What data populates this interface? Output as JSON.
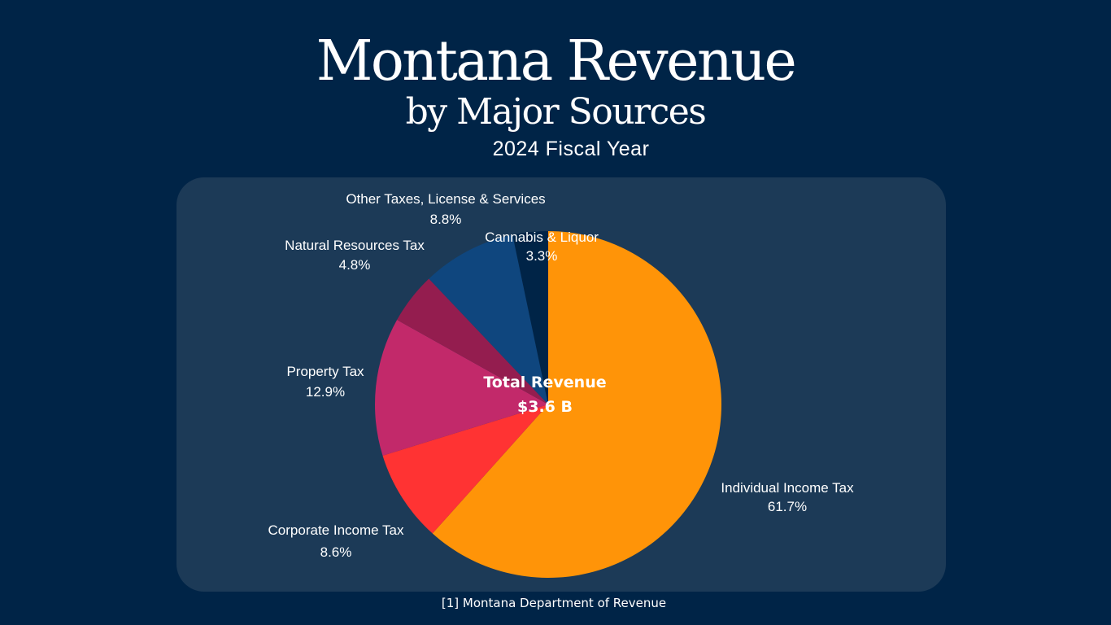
{
  "header": {
    "title": "Montana Revenue",
    "subtitle": "by Major Sources",
    "fiscal_year": "2024 Fiscal Year"
  },
  "chart_data": {
    "type": "pie",
    "title": "Montana Revenue by Major Sources",
    "subtitle": "2024 Fiscal Year",
    "center_title": "Total Revenue",
    "center_value": "$3.6 B",
    "start_angle_deg": 0,
    "direction": "clockwise",
    "slices": [
      {
        "label": "Individual Income Tax",
        "value": 61.7,
        "display": "61.7%",
        "color": "#ff9408"
      },
      {
        "label": "Corporate Income Tax",
        "value": 8.6,
        "display": "8.6%",
        "color": "#ff3333"
      },
      {
        "label": "Property Tax",
        "value": 12.9,
        "display": "12.9%",
        "color": "#c2296a"
      },
      {
        "label": "Natural Resources Tax",
        "value": 4.8,
        "display": "4.8%",
        "color": "#941d4f"
      },
      {
        "label": "Other Taxes, License & Services",
        "value": 8.8,
        "display": "8.8%",
        "color": "#0f467e"
      },
      {
        "label": "Cannabis & Liquor",
        "value": 3.3,
        "display": "3.3%",
        "color": "#002447"
      }
    ]
  },
  "footer": {
    "source": "[1] Montana Department of Revenue"
  },
  "colors": {
    "background": "#002447",
    "panel": "#1c3a57",
    "text": "#ffffff"
  }
}
